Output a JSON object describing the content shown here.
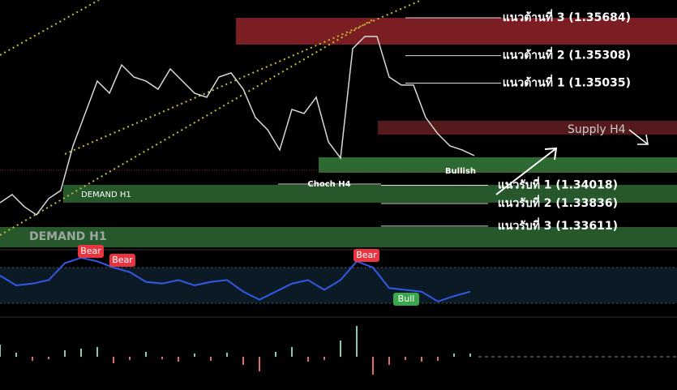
{
  "price": {
    "ylim": [
      1.334,
      1.35862
    ],
    "values": [
      1.33844,
      1.33925,
      1.33804,
      1.33723,
      1.33885,
      1.33966,
      1.34409,
      1.34732,
      1.35055,
      1.34934,
      1.35216,
      1.35095,
      1.35055,
      1.34974,
      1.35176,
      1.35055,
      1.34934,
      1.34894,
      1.35095,
      1.35136,
      1.34974,
      1.34692,
      1.34571,
      1.34369,
      1.34773,
      1.34732,
      1.34894,
      1.3445,
      1.34288,
      1.35378,
      1.35499,
      1.35499,
      1.35095,
      1.35015,
      1.35015,
      1.34692,
      1.3453,
      1.34409,
      1.34369,
      1.34313
    ]
  },
  "levels": [
    {
      "label": "แนวต้านที่ 3 (1.35684)",
      "value": 1.35684
    },
    {
      "label": "แนวต้านที่ 2 (1.35308)",
      "value": 1.35308
    },
    {
      "label": "แนวต้านที่ 1 (1.35035)",
      "value": 1.35035
    },
    {
      "label": "แนวรับที่ 1 (1.34018)",
      "value": 1.34018
    },
    {
      "label": "แนวรับที่ 2 (1.33836)",
      "value": 1.33836
    },
    {
      "label": "แนวรับที่ 3 (1.33611)",
      "value": 1.33611
    }
  ],
  "zones": {
    "supply": "Supply H4",
    "demand_small": "DEMAND H1",
    "demand_big": "DEMAND H1",
    "choch": "Choch H4",
    "bullish": "Bullish"
  },
  "rsi": {
    "ylim": [
      0,
      100
    ],
    "bands": [
      30,
      70
    ],
    "values": [
      61,
      50,
      52,
      56,
      75,
      81,
      77,
      70,
      65,
      54,
      52,
      56,
      50,
      54,
      56,
      43,
      34,
      43,
      52,
      56,
      45,
      56,
      77,
      70,
      47,
      45,
      43,
      32,
      38,
      43
    ],
    "signals": [
      "Bear",
      "Bear",
      "Bear",
      "Bull"
    ]
  },
  "histogram": {
    "values": [
      15,
      5,
      -5,
      -3,
      8,
      10,
      12,
      -8,
      -4,
      6,
      -3,
      -6,
      4,
      -5,
      5,
      -10,
      -18,
      6,
      12,
      -6,
      -4,
      20,
      38,
      -22,
      -10,
      -4,
      -6,
      -5,
      4,
      4
    ]
  }
}
